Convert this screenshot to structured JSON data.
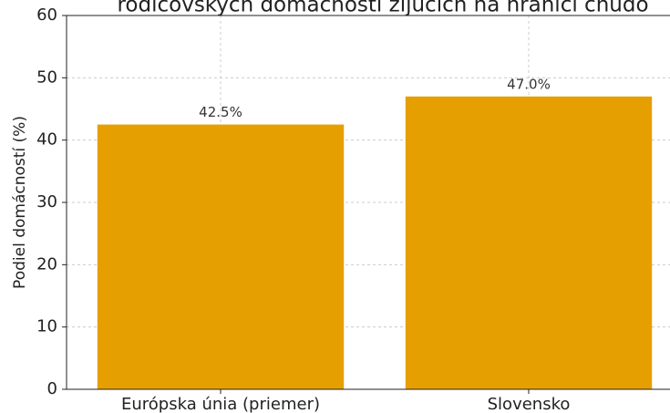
{
  "chart_data": {
    "type": "bar",
    "title": "rodičovských domácností žijúcich na hranici chudo",
    "ylabel": "Podiel domácností (%)",
    "categories": [
      "Európska únia (priemer)",
      "Slovensko"
    ],
    "values": [
      42.5,
      47.0
    ],
    "value_labels": [
      "42.5%",
      "47.0%"
    ],
    "color": "#e69f00",
    "ylim": [
      0,
      60
    ],
    "yticks": [
      0,
      10,
      20,
      30,
      40,
      50,
      60
    ],
    "grid": true
  }
}
